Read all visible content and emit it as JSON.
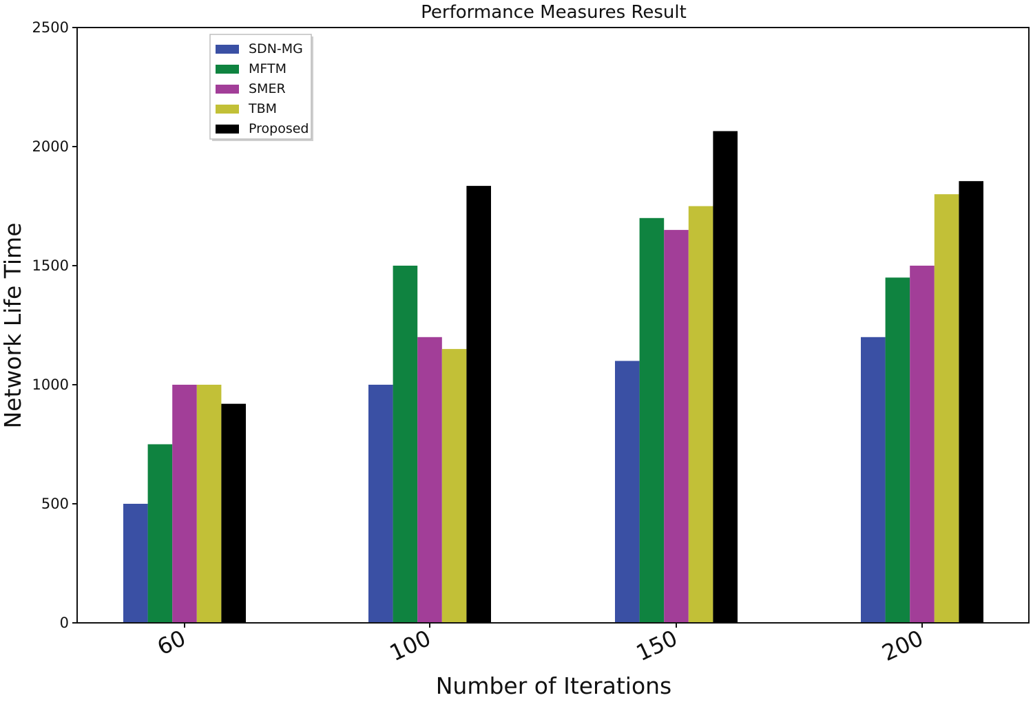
{
  "chart_data": {
    "type": "bar",
    "title": "Performance Measures Result",
    "xlabel": "Number of Iterations",
    "ylabel": "Network Life Time",
    "categories": [
      "60",
      "100",
      "150",
      "200"
    ],
    "ylim": [
      0,
      2500
    ],
    "yticks": [
      0,
      500,
      1000,
      1500,
      2000,
      2500
    ],
    "grid": false,
    "legend_position": "top-left",
    "series": [
      {
        "name": "SDN-MG",
        "color": "#3a50a4",
        "values": [
          500,
          1000,
          1100,
          1200
        ]
      },
      {
        "name": "MFTM",
        "color": "#0f8340",
        "values": [
          750,
          1500,
          1700,
          1450
        ]
      },
      {
        "name": "SMER",
        "color": "#a23e98",
        "values": [
          1000,
          1200,
          1650,
          1500
        ]
      },
      {
        "name": "TBM",
        "color": "#c2c037",
        "values": [
          1000,
          1150,
          1750,
          1800
        ]
      },
      {
        "name": "Proposed",
        "color": "#000000",
        "values": [
          920,
          1835,
          2065,
          1855
        ]
      }
    ]
  }
}
